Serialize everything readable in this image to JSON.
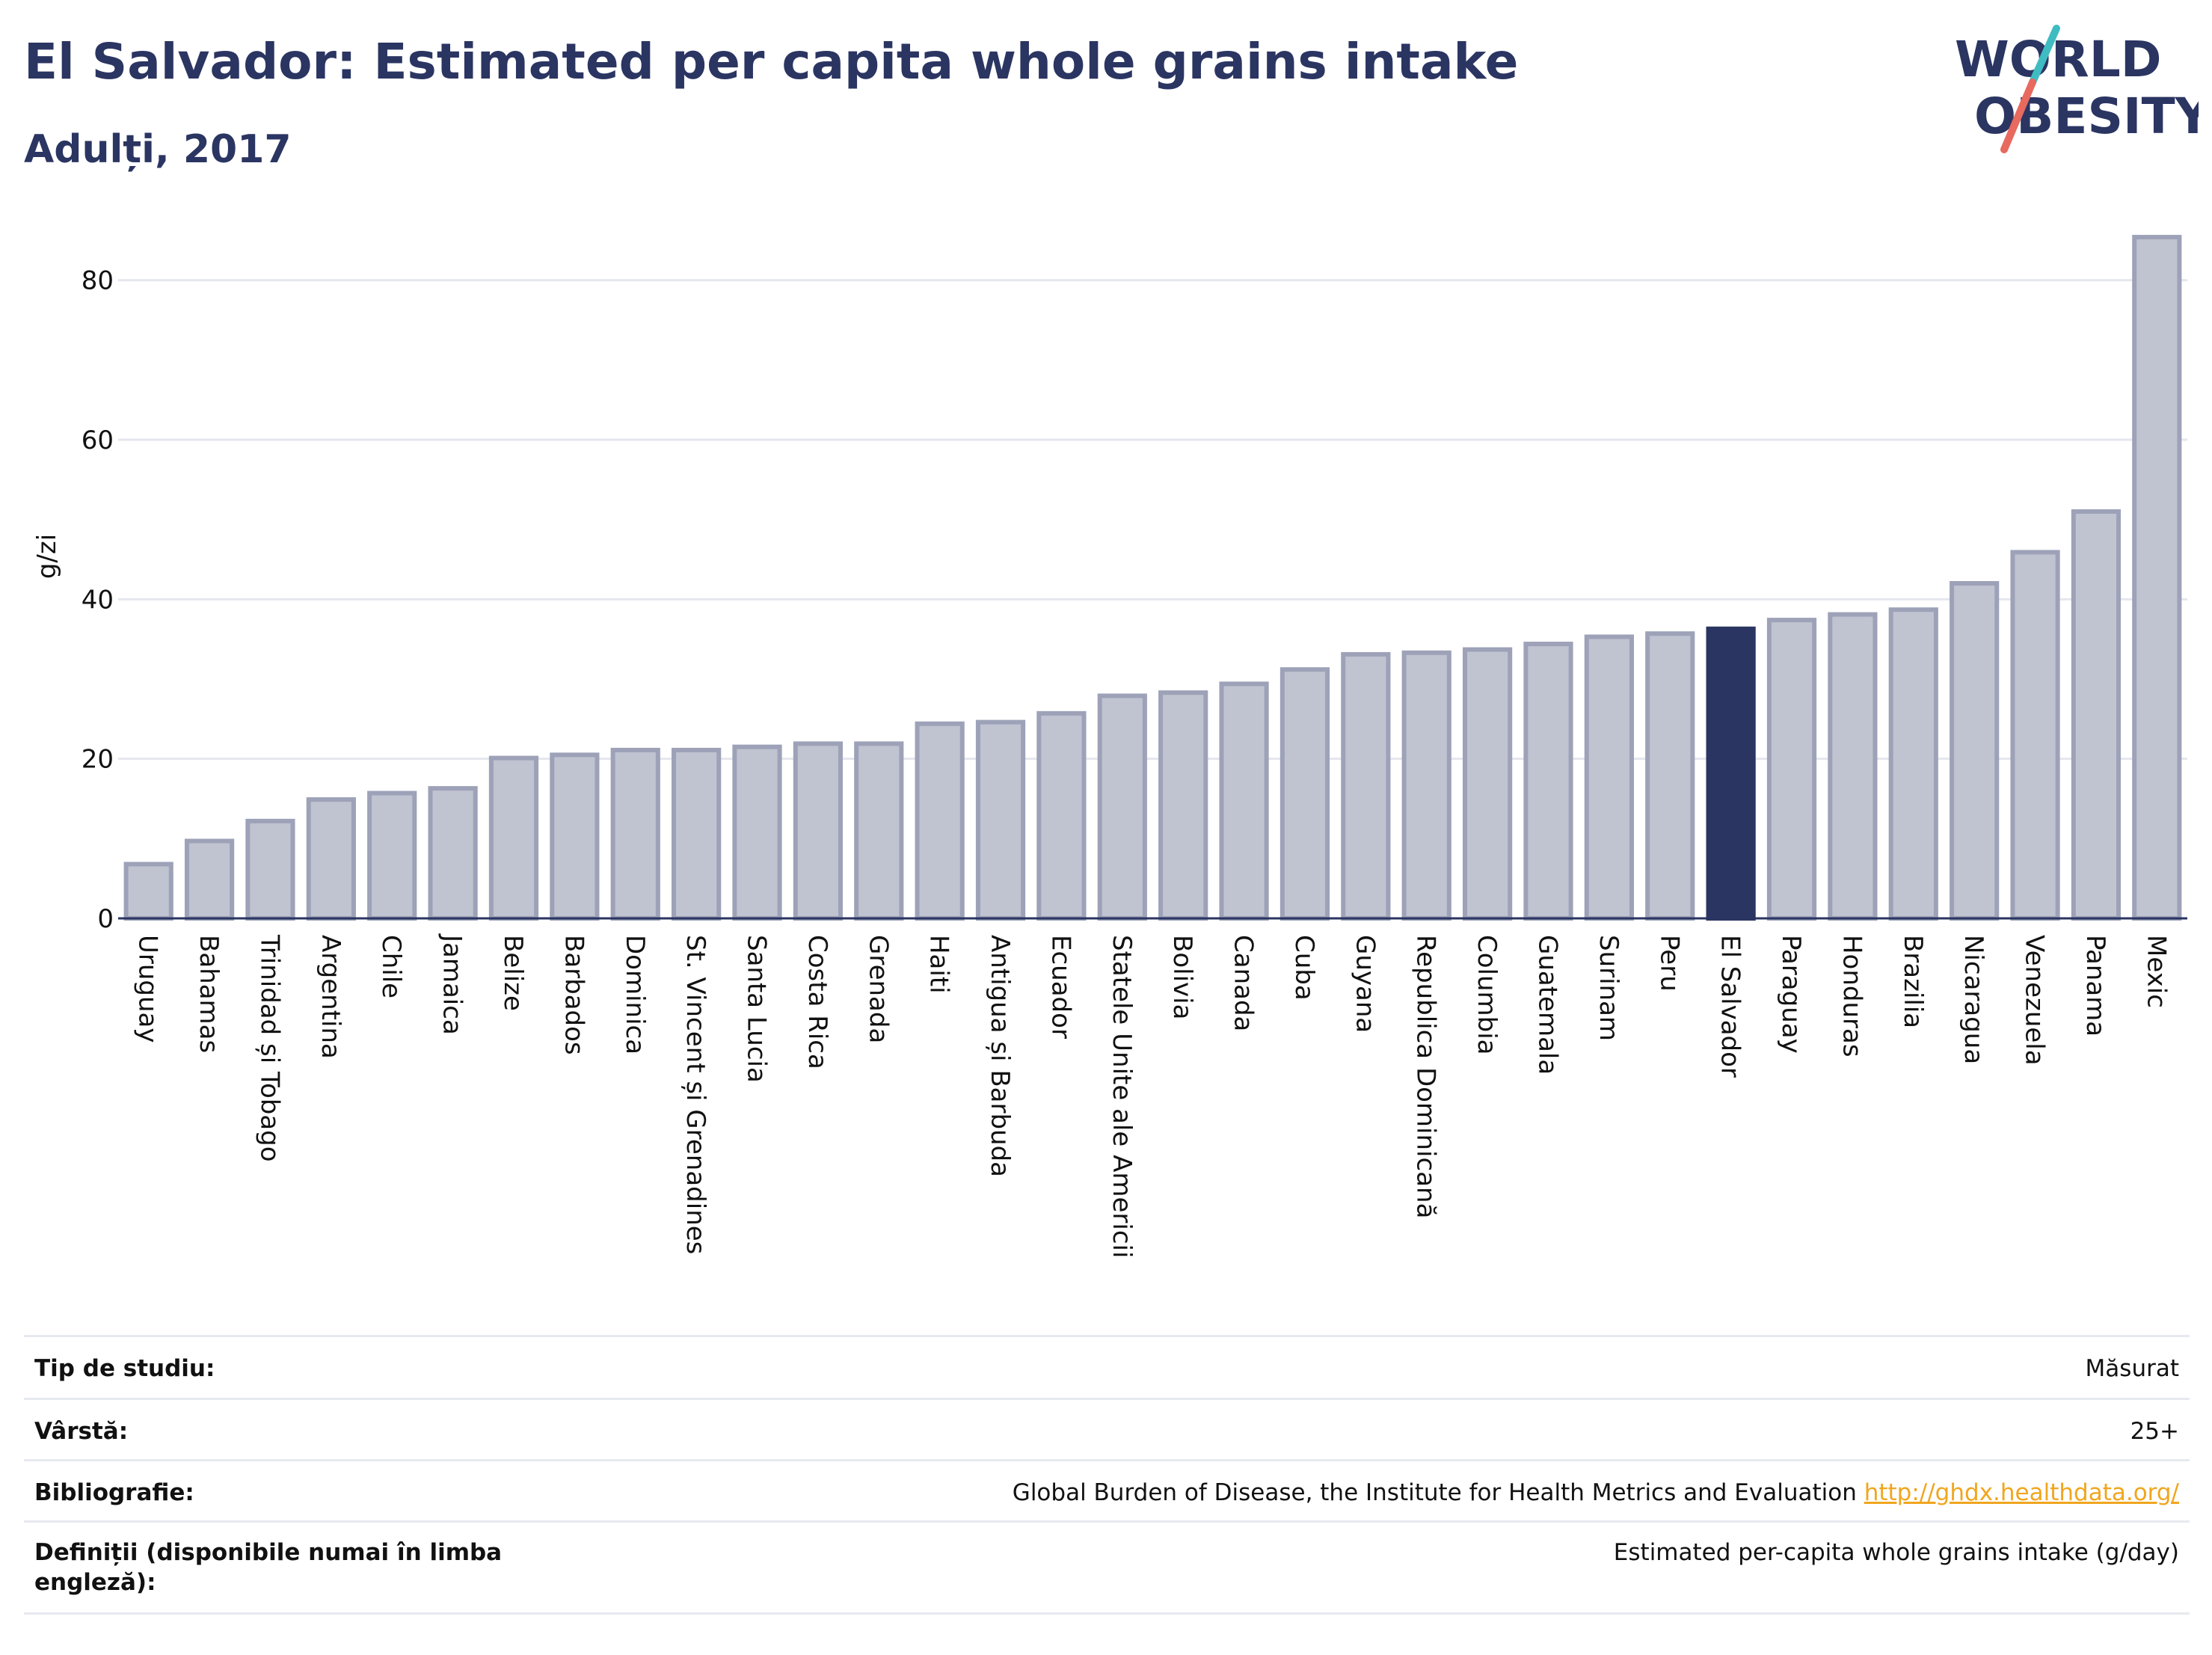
{
  "header": {
    "title": "El Salvador: Estimated per capita whole grains intake",
    "subtitle": "Adulți, 2017"
  },
  "logo": {
    "line1": "WORLD",
    "line2": "OBESITY",
    "colors": {
      "text": "#2b3562",
      "slash_teal": "#3fbcc2",
      "slash_red": "#e8695e"
    }
  },
  "chart_data": {
    "type": "bar",
    "ylabel": "g/zi",
    "ylim": [
      0,
      87
    ],
    "yticks": [
      0,
      20,
      40,
      60,
      80
    ],
    "grid": true,
    "highlight": "El Salvador",
    "colors": {
      "bar": "#c0c3d0",
      "bar_edge": "#9da2b8",
      "highlight": "#2b3562"
    },
    "categories": [
      "Uruguay",
      "Bahamas",
      "Trinidad și Tobago",
      "Argentina",
      "Chile",
      "Jamaica",
      "Belize",
      "Barbados",
      "Dominica",
      "St. Vincent și Grenadines",
      "Santa Lucia",
      "Costa Rica",
      "Grenada",
      "Haiti",
      "Antigua și Barbuda",
      "Ecuador",
      "Statele Unite ale Americii",
      "Bolivia",
      "Canada",
      "Cuba",
      "Guyana",
      "Republica Dominicană",
      "Columbia",
      "Guatemala",
      "Surinam",
      "Peru",
      "El Salvador",
      "Paraguay",
      "Honduras",
      "Brazilia",
      "Nicaragua",
      "Venezuela",
      "Panama",
      "Mexic"
    ],
    "values": [
      6.8,
      9.7,
      12.2,
      14.9,
      15.7,
      16.3,
      20.1,
      20.5,
      21.1,
      21.1,
      21.5,
      21.9,
      21.9,
      24.4,
      24.6,
      25.7,
      27.9,
      28.3,
      29.4,
      31.2,
      33.1,
      33.3,
      33.7,
      34.4,
      35.3,
      35.7,
      36.3,
      37.4,
      38.1,
      38.7,
      42.0,
      45.9,
      51.0,
      85.4
    ]
  },
  "meta": {
    "rows": [
      {
        "label": "Tip de studiu:",
        "value": "Măsurat"
      },
      {
        "label": "Vârstă:",
        "value": "25+"
      },
      {
        "label": "Bibliografie:",
        "value": "Global Burden of Disease, the Institute for Health Metrics and Evaluation",
        "link": "http://ghdx.healthdata.org/"
      },
      {
        "label": "Definiții (disponibile numai în limba engleză):",
        "value": "Estimated per-capita whole grains intake (g/day)"
      }
    ]
  }
}
